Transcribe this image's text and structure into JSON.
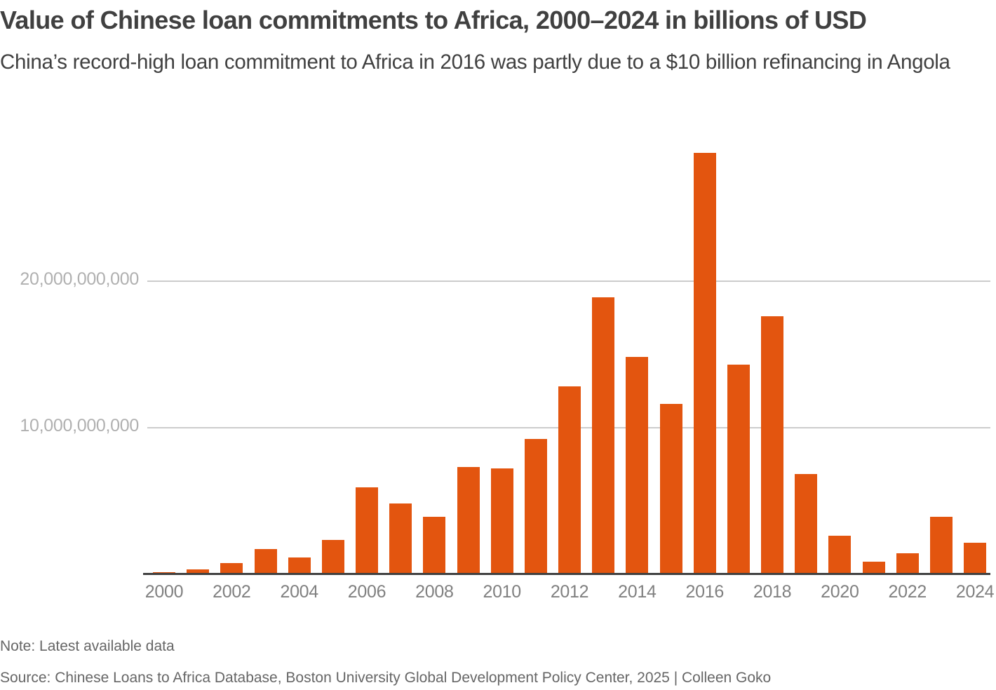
{
  "header": {
    "title": "Value of Chinese loan commitments to Africa, 2000–2024 in billions of USD",
    "subtitle": "China’s record-high loan commitment to Africa in 2016 was partly due to a $10 billion refinancing in Angola"
  },
  "footer": {
    "note": "Note: Latest available data",
    "source": "Source: Chinese Loans to Africa Database, Boston University Global Development Policy Center, 2025 | Colleen Goko"
  },
  "colors": {
    "bar": "#e3550f",
    "gridline": "#cccccc",
    "baseline": "#404040",
    "text": "#404040"
  },
  "chart_data": {
    "type": "bar",
    "title": "Value of Chinese loan commitments to Africa, 2000–2024 in billions of USD",
    "subtitle": "China’s record-high loan commitment to Africa in 2016 was partly due to a $10 billion refinancing in Angola",
    "xlabel": "",
    "ylabel": "",
    "categories": [
      "2000",
      "2001",
      "2002",
      "2003",
      "2004",
      "2005",
      "2006",
      "2007",
      "2008",
      "2009",
      "2010",
      "2011",
      "2012",
      "2013",
      "2014",
      "2015",
      "2016",
      "2017",
      "2018",
      "2019",
      "2020",
      "2021",
      "2022",
      "2023",
      "2024"
    ],
    "values": [
      100000000,
      300000000,
      700000000,
      1700000000,
      1100000000,
      2300000000,
      5900000000,
      4800000000,
      3900000000,
      7300000000,
      7200000000,
      9200000000,
      12800000000,
      18900000000,
      14800000000,
      11600000000,
      28800000000,
      14300000000,
      17600000000,
      6800000000,
      2600000000,
      800000000,
      1400000000,
      3900000000,
      2100000000
    ],
    "x_tick_labels": [
      "2000",
      "2002",
      "2004",
      "2006",
      "2008",
      "2010",
      "2012",
      "2014",
      "2016",
      "2018",
      "2020",
      "2022",
      "2024"
    ],
    "y_ticks": [
      {
        "value": 10000000000,
        "label": "10,000,000,000"
      },
      {
        "value": 20000000000,
        "label": "20,000,000,000"
      }
    ],
    "ylim": [
      0,
      30000000000
    ],
    "grid": true,
    "legend": null,
    "annotations": [
      "Note: Latest available data"
    ]
  }
}
